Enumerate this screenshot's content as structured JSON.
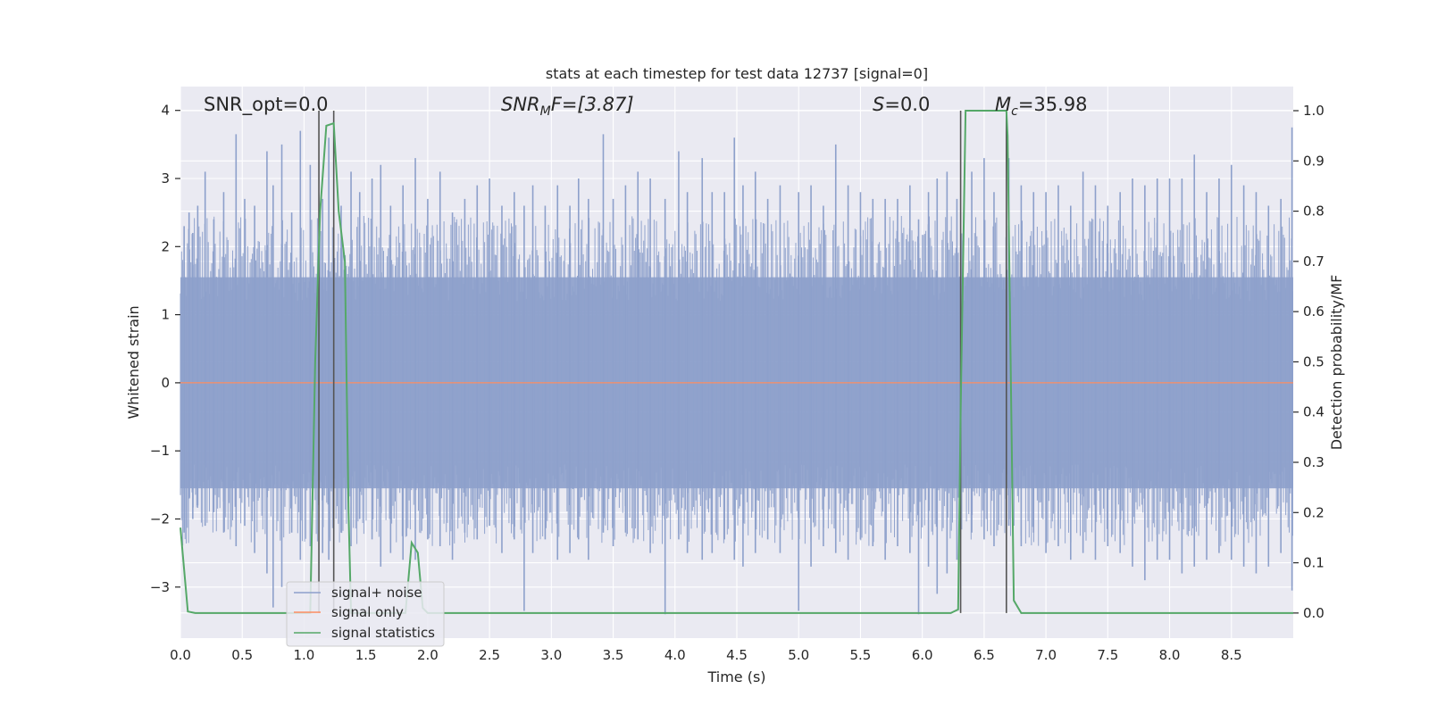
{
  "chart_data": {
    "type": "line",
    "title": "stats at each timestep for test data 12737 [signal=0]",
    "xlabel": "Time (s)",
    "ylabel_left": "Whitened strain",
    "ylabel_right": "Detection probability/MF",
    "xlim": [
      0,
      9.0
    ],
    "ylim_left": [
      -3.75,
      4.35
    ],
    "ylim_right": [
      -0.05,
      1.048
    ],
    "x_ticks": [
      0.0,
      0.5,
      1.0,
      1.5,
      2.0,
      2.5,
      3.0,
      3.5,
      4.0,
      4.5,
      5.0,
      5.5,
      6.0,
      6.5,
      7.0,
      7.5,
      8.0,
      8.5
    ],
    "x_tick_labels": [
      "0.0",
      "0.5",
      "1.0",
      "1.5",
      "2.0",
      "2.5",
      "3.0",
      "3.5",
      "4.0",
      "4.5",
      "5.0",
      "5.5",
      "6.0",
      "6.5",
      "7.0",
      "7.5",
      "8.0",
      "8.5"
    ],
    "y_left_ticks": [
      -3,
      -2,
      -1,
      0,
      1,
      2,
      3,
      4
    ],
    "y_left_tick_labels": [
      "−3",
      "−2",
      "−1",
      "0",
      "1",
      "2",
      "3",
      "4"
    ],
    "y_right_ticks": [
      0.0,
      0.1,
      0.2,
      0.3,
      0.4,
      0.5,
      0.6,
      0.7,
      0.8,
      0.9,
      1.0
    ],
    "y_right_tick_labels": [
      "0.0",
      "0.1",
      "0.2",
      "0.3",
      "0.4",
      "0.5",
      "0.6",
      "0.7",
      "0.8",
      "0.9",
      "1.0"
    ],
    "grid": true,
    "legend_position": "lower-left",
    "annotations": {
      "snr_opt": "SNR_opt=0.0",
      "snr_mf_main": "SNR",
      "snr_mf_sub": "M",
      "snr_mf_rest": "F=[3.87]",
      "s_main": "S",
      "s_rest": "=0.0",
      "mc_main": "M",
      "mc_sub": "c",
      "mc_rest": "=35.98"
    },
    "vertical_lines_x": [
      1.12,
      1.24,
      6.31,
      6.68
    ],
    "series": [
      {
        "name": "signal+ noise",
        "axis": "left",
        "color": "#8da0cb",
        "spikes": [
          [
            0.03,
            2.3,
            -2.2
          ],
          [
            0.07,
            2.5,
            -1.7
          ],
          [
            0.1,
            2.2,
            -2.0
          ],
          [
            0.14,
            2.6,
            -1.8
          ],
          [
            0.2,
            3.1,
            -2.1
          ],
          [
            0.27,
            2.4,
            -1.9
          ],
          [
            0.35,
            2.8,
            -2.2
          ],
          [
            0.45,
            3.65,
            -2.4
          ],
          [
            0.52,
            2.7,
            -2.1
          ],
          [
            0.6,
            2.6,
            -2.5
          ],
          [
            0.7,
            3.4,
            -2.8
          ],
          [
            0.75,
            2.9,
            -3.3
          ],
          [
            0.82,
            3.5,
            -3.0
          ],
          [
            0.9,
            2.5,
            -2.2
          ],
          [
            0.97,
            3.7,
            -2.6
          ],
          [
            1.05,
            3.2,
            -2.4
          ],
          [
            1.15,
            2.7,
            -2.5
          ],
          [
            1.2,
            3.6,
            -2.6
          ],
          [
            1.3,
            2.6,
            -2.2
          ],
          [
            1.38,
            3.1,
            -2.4
          ],
          [
            1.45,
            2.8,
            -2.0
          ],
          [
            1.55,
            3.0,
            -2.3
          ],
          [
            1.62,
            3.2,
            -2.7
          ],
          [
            1.7,
            2.6,
            -2.5
          ],
          [
            1.8,
            2.9,
            -2.6
          ],
          [
            1.9,
            3.3,
            -2.6
          ],
          [
            2.0,
            2.7,
            -2.3
          ],
          [
            2.1,
            3.1,
            -2.4
          ],
          [
            2.2,
            2.5,
            -2.6
          ],
          [
            2.3,
            2.7,
            -2.2
          ],
          [
            2.4,
            2.9,
            -2.3
          ],
          [
            2.5,
            3.0,
            -2.1
          ],
          [
            2.6,
            2.6,
            -2.5
          ],
          [
            2.7,
            2.8,
            -2.3
          ],
          [
            2.78,
            2.6,
            -3.35
          ],
          [
            2.85,
            2.9,
            -2.5
          ],
          [
            2.95,
            2.6,
            -2.3
          ],
          [
            3.05,
            2.9,
            -2.6
          ],
          [
            3.15,
            2.6,
            -2.5
          ],
          [
            3.22,
            3.0,
            -2.3
          ],
          [
            3.3,
            2.7,
            -2.6
          ],
          [
            3.42,
            3.65,
            -2.2
          ],
          [
            3.5,
            2.7,
            -2.4
          ],
          [
            3.6,
            2.9,
            -2.2
          ],
          [
            3.7,
            3.1,
            -2.3
          ],
          [
            3.8,
            3.0,
            -2.5
          ],
          [
            3.92,
            2.7,
            -3.4
          ],
          [
            4.03,
            3.4,
            -2.3
          ],
          [
            4.1,
            2.8,
            -2.5
          ],
          [
            4.22,
            3.3,
            -2.6
          ],
          [
            4.3,
            2.8,
            -2.5
          ],
          [
            4.4,
            2.8,
            -2.3
          ],
          [
            4.48,
            3.6,
            -2.6
          ],
          [
            4.55,
            2.9,
            -2.7
          ],
          [
            4.65,
            3.1,
            -2.5
          ],
          [
            4.75,
            2.7,
            -2.3
          ],
          [
            4.85,
            2.9,
            -2.5
          ],
          [
            5.0,
            2.8,
            -3.35
          ],
          [
            5.1,
            2.9,
            -2.7
          ],
          [
            5.2,
            2.6,
            -2.4
          ],
          [
            5.3,
            3.5,
            -2.5
          ],
          [
            5.4,
            2.9,
            -2.6
          ],
          [
            5.5,
            2.8,
            -2.3
          ],
          [
            5.6,
            2.7,
            -2.4
          ],
          [
            5.7,
            2.7,
            -2.6
          ],
          [
            5.8,
            2.7,
            -2.4
          ],
          [
            5.9,
            2.9,
            -2.5
          ],
          [
            5.97,
            2.4,
            -3.4
          ],
          [
            6.05,
            2.8,
            -2.7
          ],
          [
            6.12,
            3.0,
            -3.1
          ],
          [
            6.2,
            3.1,
            -2.8
          ],
          [
            6.28,
            2.7,
            -2.6
          ],
          [
            6.4,
            3.1,
            -2.2
          ],
          [
            6.5,
            3.3,
            -2.3
          ],
          [
            6.58,
            2.8,
            -2.4
          ],
          [
            6.7,
            3.3,
            -2.1
          ],
          [
            6.8,
            2.9,
            -2.4
          ],
          [
            6.9,
            2.8,
            -2.2
          ],
          [
            7.0,
            2.8,
            -2.5
          ],
          [
            7.1,
            2.9,
            -2.4
          ],
          [
            7.2,
            2.6,
            -2.6
          ],
          [
            7.3,
            3.1,
            -2.5
          ],
          [
            7.4,
            2.9,
            -2.6
          ],
          [
            7.5,
            2.6,
            -2.4
          ],
          [
            7.6,
            2.8,
            -2.5
          ],
          [
            7.7,
            3.0,
            -2.7
          ],
          [
            7.8,
            2.9,
            -2.9
          ],
          [
            7.9,
            3.0,
            -2.6
          ],
          [
            8.0,
            3.0,
            -2.6
          ],
          [
            8.1,
            3.0,
            -2.8
          ],
          [
            8.2,
            3.35,
            -2.7
          ],
          [
            8.3,
            2.8,
            -2.6
          ],
          [
            8.4,
            3.0,
            -2.5
          ],
          [
            8.5,
            3.2,
            -2.6
          ],
          [
            8.6,
            2.9,
            -2.7
          ],
          [
            8.7,
            2.8,
            -2.8
          ],
          [
            8.8,
            2.6,
            -2.7
          ],
          [
            8.9,
            2.7,
            -2.5
          ],
          [
            8.99,
            3.75,
            -3.05
          ]
        ],
        "band_upper": 1.55,
        "band_lower": -1.55
      },
      {
        "name": "signal only",
        "axis": "left",
        "color": "#fc8d62",
        "x": [
          0.0,
          9.0
        ],
        "y": [
          0.0,
          0.0
        ]
      },
      {
        "name": "signal statistics",
        "axis": "right",
        "color": "#55a868",
        "x": [
          0.0,
          0.06,
          0.12,
          1.0,
          1.05,
          1.09,
          1.13,
          1.18,
          1.24,
          1.28,
          1.33,
          1.36,
          1.38,
          1.82,
          1.87,
          1.92,
          1.96,
          2.0,
          6.23,
          6.29,
          6.31,
          6.35,
          6.38,
          6.68,
          6.69,
          6.74,
          6.8,
          9.0
        ],
        "y": [
          0.17,
          0.003,
          0.0,
          0.0,
          0.0,
          0.5,
          0.8,
          0.97,
          0.975,
          0.8,
          0.7,
          0.2,
          0.0,
          0.0,
          0.14,
          0.12,
          0.01,
          0.0,
          0.0,
          0.007,
          0.4,
          1.0,
          1.0,
          1.0,
          0.95,
          0.025,
          0.0,
          0.0
        ]
      }
    ]
  }
}
